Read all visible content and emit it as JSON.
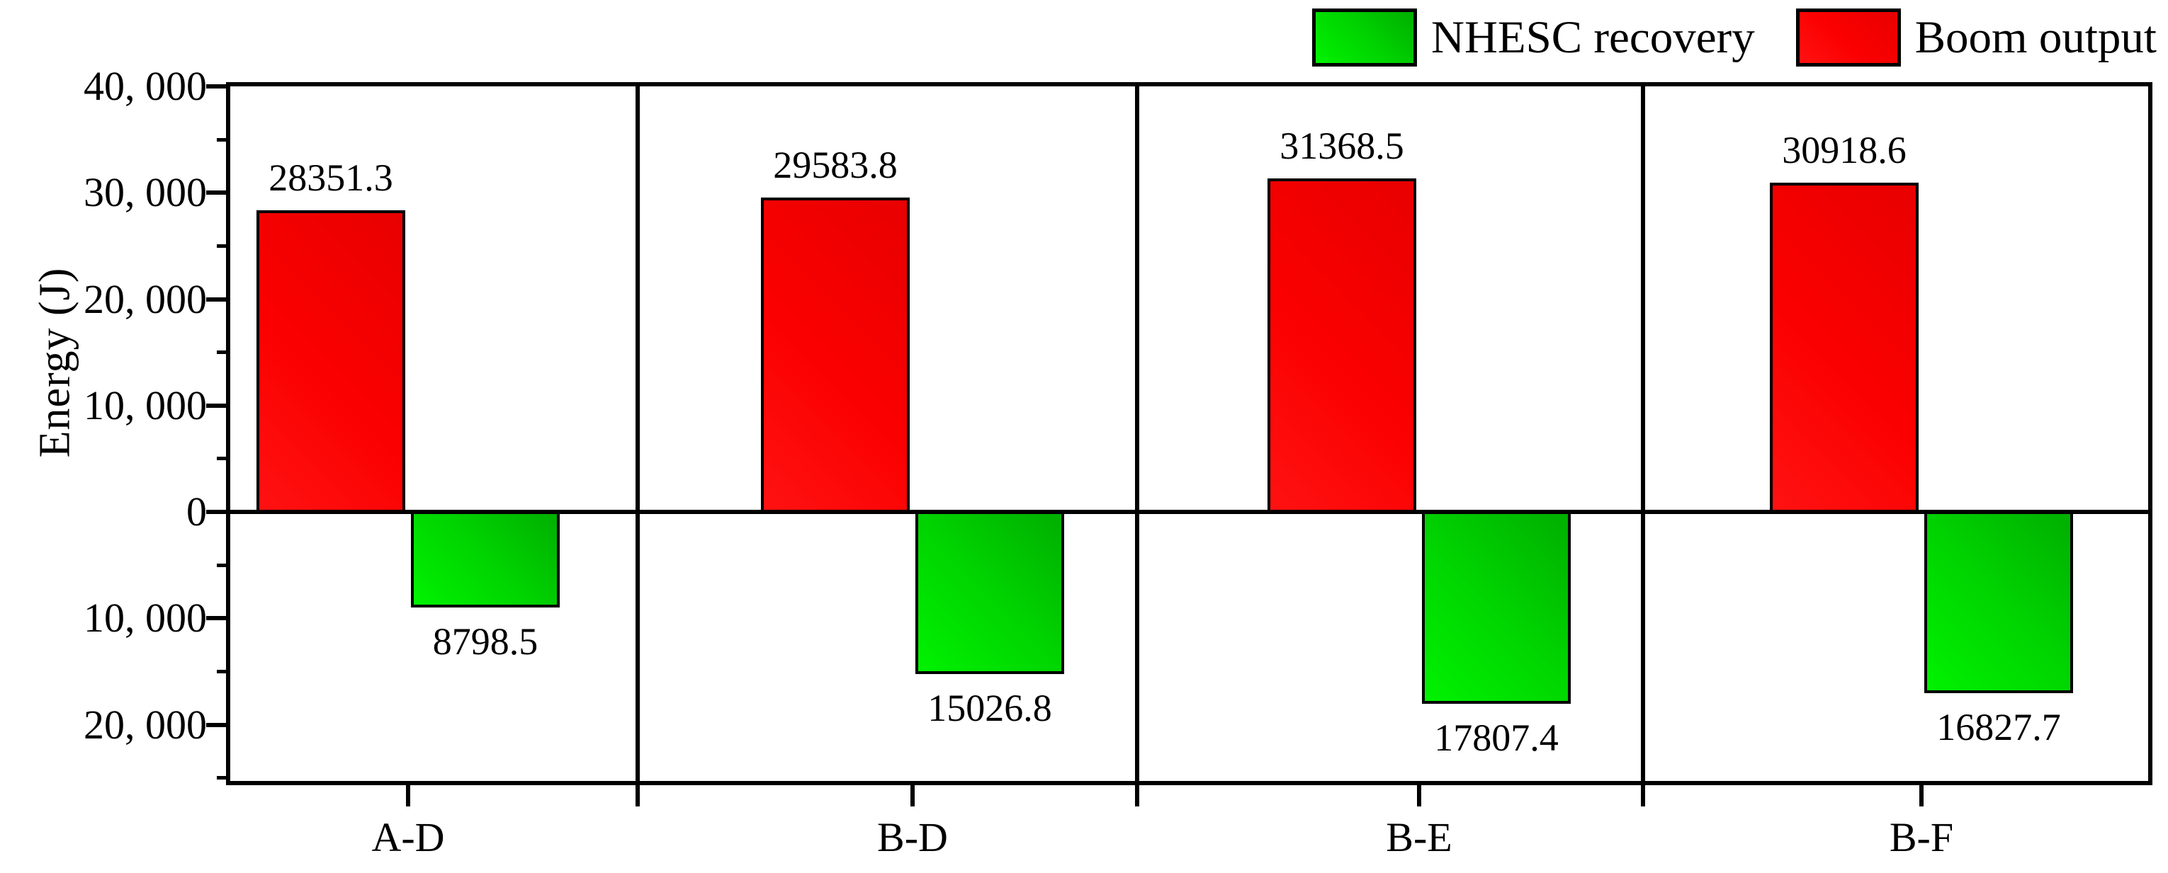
{
  "chart_data": {
    "type": "bar",
    "title": "",
    "categories": [
      "A-D",
      "B-D",
      "B-E",
      "B-F"
    ],
    "series": [
      {
        "name": "Boom output",
        "color": "#ff0000",
        "direction": "up",
        "values": [
          28351.3,
          29583.8,
          31368.5,
          30918.6
        ]
      },
      {
        "name": "NHESC recovery",
        "color": "#00d300",
        "direction": "down",
        "values": [
          8798.5,
          15026.8,
          17807.4,
          16827.7
        ]
      }
    ],
    "value_labels_shown": true,
    "xlabel": "",
    "ylabel": "Energy (J)",
    "y_axis": {
      "range": [
        -25300,
        40000
      ],
      "major_tick_step": 10000,
      "minor_tick_step": 5000,
      "negative_labels_unsigned": true,
      "ticks": [
        {
          "value": 40000,
          "label": "40, 000"
        },
        {
          "value": 30000,
          "label": "30, 000"
        },
        {
          "value": 20000,
          "label": "20, 000"
        },
        {
          "value": 10000,
          "label": "10, 000"
        },
        {
          "value": 0,
          "label": "0"
        },
        {
          "value": -10000,
          "label": "10, 000"
        },
        {
          "value": -20000,
          "label": "20, 000"
        }
      ],
      "minor_tick_values": [
        35000,
        25000,
        15000,
        5000,
        -5000,
        -15000,
        -25000
      ]
    },
    "legend": {
      "position": "top-right",
      "entries": [
        {
          "label": "NHESC recovery",
          "color": "#00d300"
        },
        {
          "label": "Boom output",
          "color": "#ff0000"
        }
      ]
    },
    "panel_separators": true,
    "grid": false
  }
}
